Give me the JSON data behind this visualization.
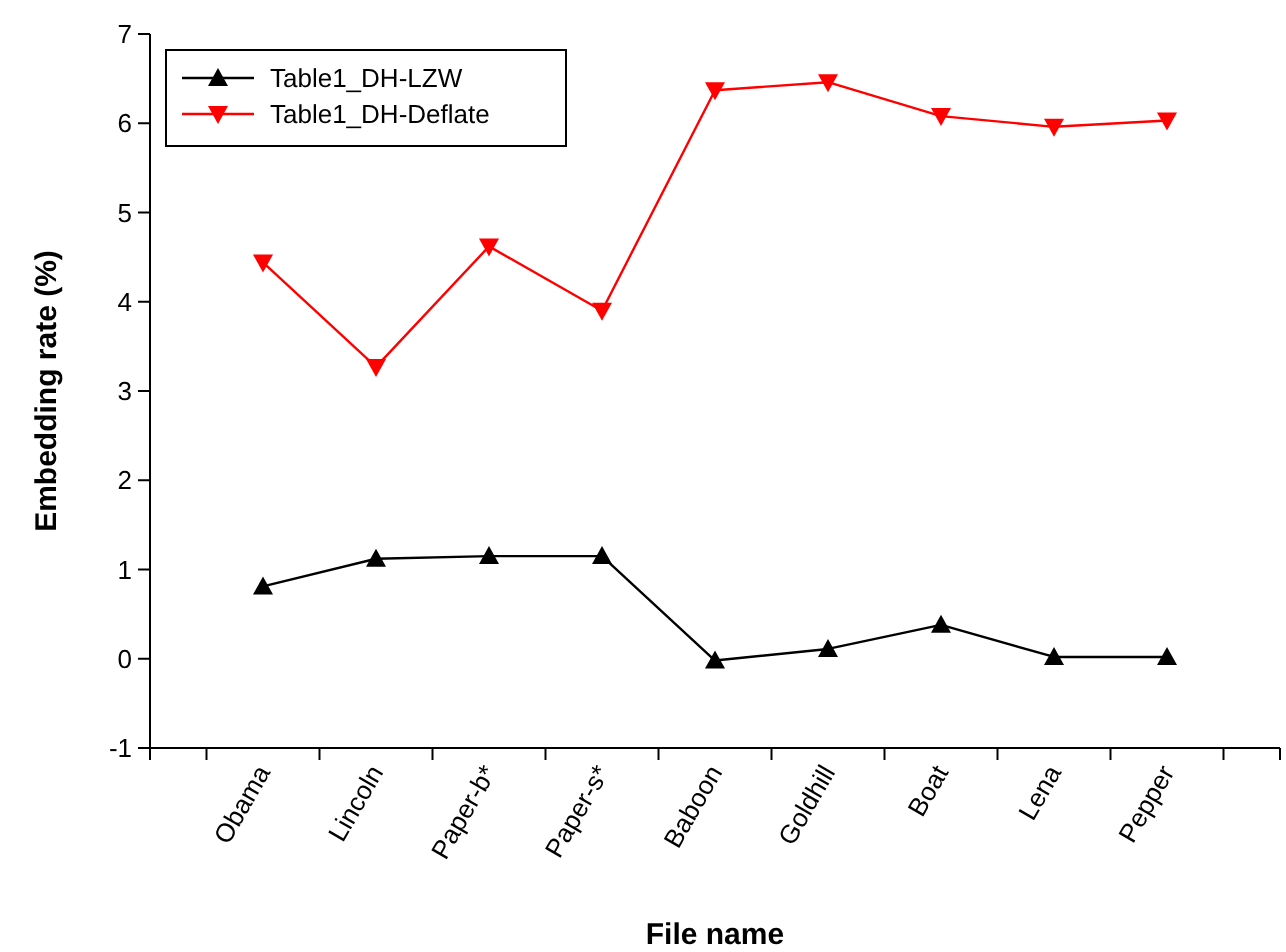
{
  "chart_data": {
    "type": "line",
    "xlabel": "File name",
    "ylabel": "Embedding rate (%)",
    "categories": [
      "Obama",
      "Lincoln",
      "Paper-b*",
      "Paper-s*",
      "Baboon",
      "Goldhill",
      "Boat",
      "Lena",
      "Pepper"
    ],
    "series": [
      {
        "name": "Table1_DH-LZW",
        "color": "#000000",
        "marker": "triangle",
        "values": [
          0.81,
          1.12,
          1.15,
          1.15,
          -0.02,
          0.11,
          0.38,
          0.02,
          0.02
        ]
      },
      {
        "name": "Table1_DH-Deflate",
        "color": "#ff0000",
        "marker": "triangle-down",
        "values": [
          4.44,
          3.27,
          4.62,
          3.9,
          6.37,
          6.46,
          6.08,
          5.96,
          6.03
        ]
      }
    ],
    "ylim": [
      -1,
      7
    ],
    "yticks": [
      -1,
      0,
      1,
      2,
      3,
      4,
      5,
      6,
      7
    ],
    "grid": false,
    "legend": "top left",
    "line_style": "solid"
  }
}
